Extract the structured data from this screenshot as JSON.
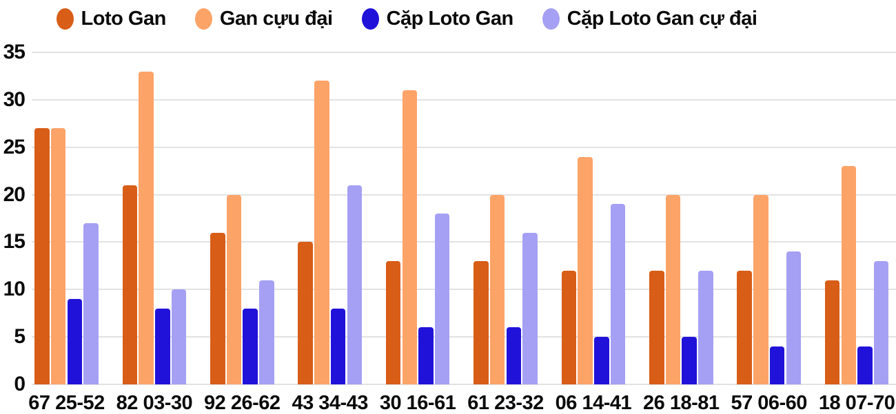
{
  "chart_data": {
    "type": "bar",
    "title": "",
    "xlabel": "",
    "ylabel": "",
    "categories": [
      "67 25-52",
      "82 03-30",
      "92 26-62",
      "43 34-43",
      "30 16-61",
      "61 23-32",
      "06 14-41",
      "26 18-81",
      "57 06-60",
      "18 07-70"
    ],
    "series": [
      {
        "name": "Loto Gan",
        "color": "#d85d17",
        "values": [
          27,
          21,
          16,
          15,
          13,
          13,
          12,
          12,
          12,
          11
        ]
      },
      {
        "name": "Gan cựu đại",
        "color": "#fca368",
        "values": [
          27,
          33,
          20,
          32,
          31,
          20,
          24,
          20,
          20,
          23
        ]
      },
      {
        "name": "Cặp Loto Gan",
        "color": "#2112d9",
        "values": [
          9,
          8,
          8,
          8,
          6,
          6,
          5,
          5,
          4,
          4
        ]
      },
      {
        "name": "Cặp Loto Gan cự đại",
        "color": "#a5a0f3",
        "values": [
          17,
          10,
          11,
          21,
          18,
          16,
          19,
          12,
          14,
          13
        ]
      }
    ],
    "y_ticks": [
      0,
      5,
      10,
      15,
      20,
      25,
      30,
      35
    ],
    "ylim": [
      0,
      35
    ],
    "grid": true,
    "legend_position": "top"
  },
  "colors": {
    "grid": "#e2e2e2",
    "text": "#0a0a0a",
    "background": "#ffffff"
  }
}
